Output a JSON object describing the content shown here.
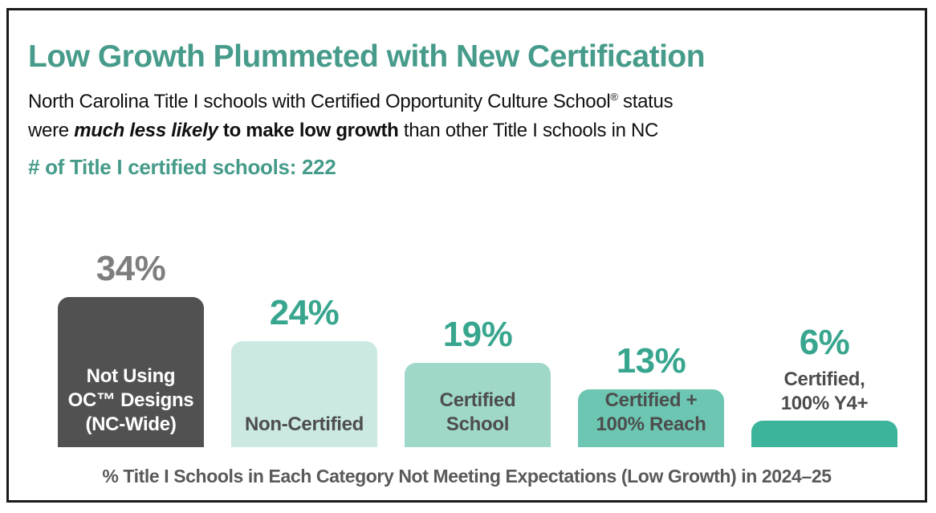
{
  "header": {
    "title": "Low Growth Plummeted with New Certification",
    "subtitle_parts": [
      {
        "t": "North Carolina Title I schools with Certified Opportunity Culture School",
        "s": "n"
      },
      {
        "t": "®",
        "s": "sup"
      },
      {
        "t": " status",
        "s": "n"
      },
      {
        "s": "br"
      },
      {
        "t": "were ",
        "s": "n"
      },
      {
        "t": "much less likely",
        "s": "bi"
      },
      {
        "t": " to make low growth",
        "s": "b"
      },
      {
        "t": " than other Title I schools in NC",
        "s": "n"
      }
    ],
    "count_line": "# of Title I certified schools: 222"
  },
  "chart_data": {
    "type": "bar",
    "title": "Low Growth Plummeted with New Certification",
    "caption": "% Title I Schools in Each Category Not Meeting Expectations (Low Growth) in 2024–25",
    "unit": "%",
    "ylim": [
      0,
      40
    ],
    "grid": false,
    "legend": "none",
    "categories": [
      "Not Using OC™ Designs (NC-Wide)",
      "Non-Certified",
      "Certified School",
      "Certified + 100% Reach",
      "Certified, 100% Y4+"
    ],
    "values": [
      34,
      24,
      19,
      13,
      6
    ],
    "bars": [
      {
        "pct": "34%",
        "value": 34,
        "label_lines": [
          "Not Using",
          "OC™ Designs",
          "(NC-Wide)"
        ],
        "label_placement": "inside",
        "fill": "#515151",
        "pct_color": "#7E7E7E",
        "label_color": "#FFFFFF"
      },
      {
        "pct": "24%",
        "value": 24,
        "label_lines": [
          "Non-Certified"
        ],
        "label_placement": "inside",
        "fill": "#CBE9E2",
        "pct_color": "#38A68E",
        "label_color": "#4D4D4D"
      },
      {
        "pct": "19%",
        "value": 19,
        "label_lines": [
          "Certified",
          "School"
        ],
        "label_placement": "inside",
        "fill": "#9FD7C9",
        "pct_color": "#38A68E",
        "label_color": "#4D4D4D"
      },
      {
        "pct": "13%",
        "value": 13,
        "label_lines": [
          "Certified +",
          "100% Reach"
        ],
        "label_placement": "inside",
        "fill": "#6CC6B2",
        "pct_color": "#38A68E",
        "label_color": "#4D4D4D"
      },
      {
        "pct": "6%",
        "value": 6,
        "label_lines": [
          "Certified,",
          "100% Y4+"
        ],
        "label_placement": "above",
        "fill": "#3CB49C",
        "pct_color": "#38A68E",
        "label_color": "#4D4D4D"
      }
    ]
  },
  "colors": {
    "accent_teal": "#469B8A",
    "pct_teal": "#38A68E",
    "pct_gray": "#7E7E7E",
    "border": "#1A1A1A",
    "caption_gray": "#58595B"
  }
}
